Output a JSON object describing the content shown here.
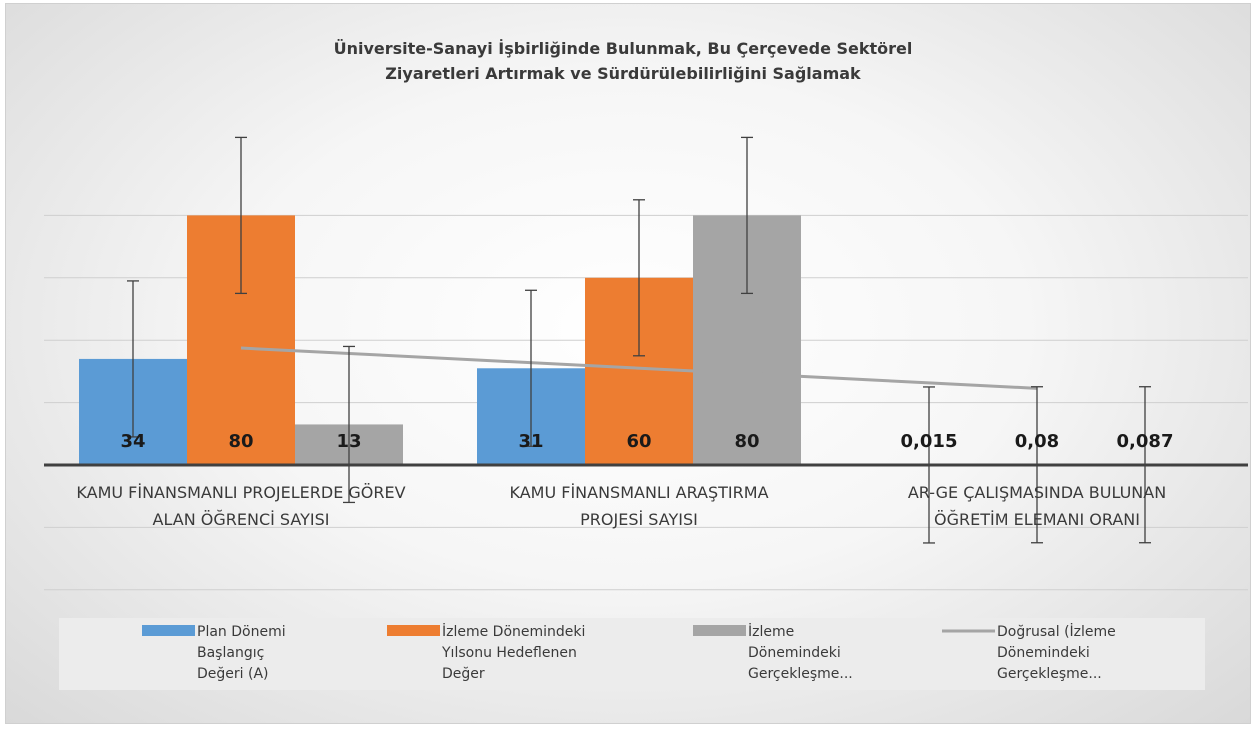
{
  "chart_data": {
    "type": "bar",
    "title_lines": [
      "Üniversite-Sanayi İşbirliğinde Bulunmak, Bu Çerçevede Sektörel",
      "Ziyaretleri Artırmak ve Sürdürülebilirliğini Sağlamak"
    ],
    "categories": [
      [
        "KAMU FİNANSMANLI PROJELERDE GÖREV",
        "ALAN ÖĞRENCİ SAYISI"
      ],
      [
        "KAMU FİNANSMANLI ARAŞTIRMA",
        "PROJESİ SAYISI"
      ],
      [
        "AR-GE ÇALIŞMASINDA BULUNAN",
        "ÖĞRETİM ELEMANI ORANI"
      ]
    ],
    "series": [
      {
        "legend_lines": [
          "Plan Dönemi",
          "Başlangıç",
          "Değeri (A)"
        ],
        "color": "#5b9bd5",
        "values": [
          34,
          31,
          0.015
        ],
        "labels": [
          "34",
          "31",
          "0,015"
        ]
      },
      {
        "legend_lines": [
          "İzleme Dönemindeki",
          "Yılsonu Hedeflenen",
          "Değer"
        ],
        "color": "#ed7d31",
        "values": [
          80,
          60,
          0.08
        ],
        "labels": [
          "80",
          "60",
          "0,08"
        ]
      },
      {
        "legend_lines": [
          "İzleme",
          "Dönemindeki",
          "Gerçekleşme..."
        ],
        "color": "#a5a5a5",
        "values": [
          13,
          80,
          0.087
        ],
        "labels": [
          "13",
          "80",
          "0,087"
        ]
      }
    ],
    "trendline": {
      "legend_lines": [
        "Doğrusal (İzleme",
        "Dönemindeki",
        "Gerçekleşme..."
      ],
      "color": "#a5a5a5"
    },
    "error_bar_magnitude": 25,
    "ylim": [
      -40,
      80
    ],
    "grid": true,
    "legend_position": "bottom"
  }
}
